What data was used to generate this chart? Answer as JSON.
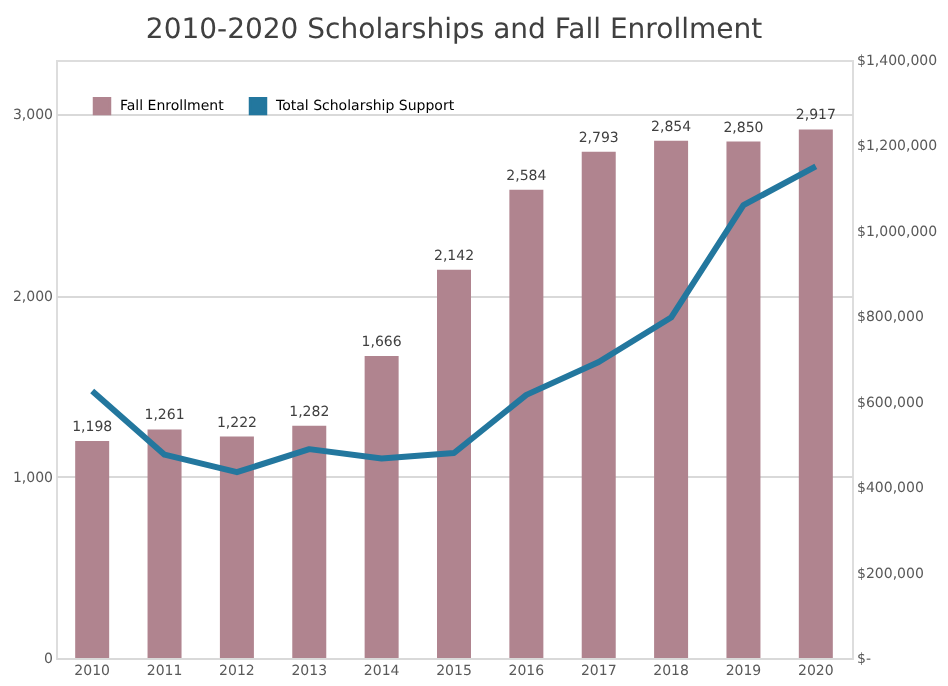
{
  "chart_data": {
    "type": "bar",
    "title": "2010-2020 Scholarships and Fall Enrollment",
    "categories": [
      "2010",
      "2011",
      "2012",
      "2013",
      "2014",
      "2015",
      "2016",
      "2017",
      "2018",
      "2019",
      "2020"
    ],
    "series": [
      {
        "name": "Fall Enrollment",
        "color": "#b0848f",
        "values": [
          1198,
          1261,
          1222,
          1282,
          1666,
          2142,
          2584,
          2793,
          2854,
          2850,
          2917
        ],
        "value_labels": [
          "1,198",
          "1,261",
          "1,222",
          "1,282",
          "1,666",
          "2,142",
          "2,584",
          "2,793",
          "2,854",
          "2,850",
          "2,917"
        ]
      },
      {
        "name": "Total Scholarship Support",
        "type": "line",
        "axis": "y2",
        "color": "#23779e",
        "values": [
          625000,
          476000,
          435000,
          489000,
          467000,
          480000,
          616000,
          693000,
          797000,
          1060000,
          1151000
        ]
      }
    ],
    "ylim": [
      0,
      3300
    ],
    "yticks": [
      0,
      {
        "value": 1000,
        "label": "1,000"
      },
      {
        "value": 2000,
        "label": "2,000"
      },
      {
        "value": 3000,
        "label": "3,000"
      }
    ],
    "y2lim": [
      0,
      1400000
    ],
    "y2ticks": [
      {
        "value": 0,
        "label": "$-"
      },
      {
        "value": 200000,
        "label": "$200,000"
      },
      {
        "value": 400000,
        "label": "$400,000"
      },
      {
        "value": 600000,
        "label": "$600,000"
      },
      {
        "value": 800000,
        "label": "$800,000"
      },
      {
        "value": 1000000,
        "label": "$1,000,000"
      },
      {
        "value": 1200000,
        "label": "$1,200,000"
      },
      {
        "value": 1400000,
        "label": "$1,400,000"
      }
    ],
    "grid": "y",
    "legend": "top left",
    "marker": "none",
    "line_style": "solid"
  }
}
